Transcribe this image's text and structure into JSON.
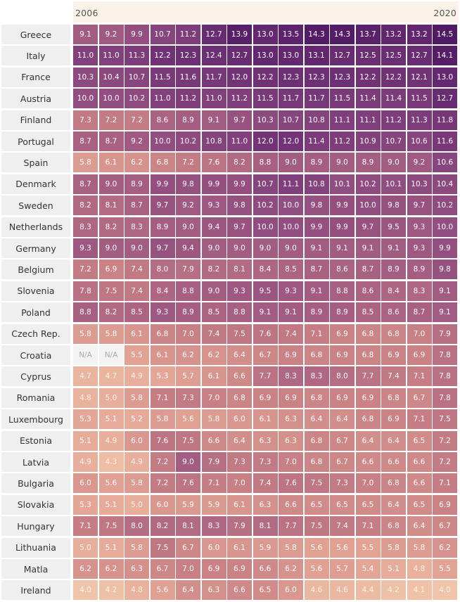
{
  "chart_data": {
    "type": "heatmap",
    "x_start_label": "2006",
    "x_end_label": "2020",
    "missing_label": "N/A",
    "rows": [
      {
        "country": "Greece",
        "values": [
          9.1,
          9.2,
          9.9,
          10.7,
          11.2,
          12.7,
          13.9,
          13.0,
          13.5,
          14.3,
          14.3,
          13.7,
          13.2,
          13.2,
          14.5
        ]
      },
      {
        "country": "Italy",
        "values": [
          11.0,
          11.0,
          11.3,
          12.2,
          12.3,
          12.4,
          12.7,
          13.0,
          13.0,
          13.1,
          12.7,
          12.5,
          12.5,
          12.7,
          14.1
        ]
      },
      {
        "country": "France",
        "values": [
          10.3,
          10.4,
          10.7,
          11.5,
          11.6,
          11.7,
          12.0,
          12.2,
          12.3,
          12.3,
          12.3,
          12.2,
          12.2,
          12.1,
          13.0
        ]
      },
      {
        "country": "Austria",
        "values": [
          10.0,
          10.0,
          10.2,
          11.0,
          11.2,
          11.0,
          11.2,
          11.5,
          11.7,
          11.7,
          11.5,
          11.4,
          11.4,
          11.5,
          12.7
        ]
      },
      {
        "country": "Finland",
        "values": [
          7.3,
          7.2,
          7.2,
          8.6,
          8.9,
          9.1,
          9.7,
          10.3,
          10.7,
          10.8,
          11.1,
          11.1,
          11.2,
          11.3,
          11.8
        ]
      },
      {
        "country": "Portugal",
        "values": [
          8.7,
          8.7,
          9.2,
          10.0,
          10.2,
          10.8,
          11.0,
          12.0,
          12.0,
          11.4,
          11.2,
          10.9,
          10.7,
          10.6,
          11.6
        ]
      },
      {
        "country": "Spain",
        "values": [
          5.8,
          6.1,
          6.2,
          6.8,
          7.2,
          7.6,
          8.2,
          8.8,
          9.0,
          8.9,
          9.0,
          8.9,
          9.0,
          9.2,
          10.6
        ]
      },
      {
        "country": "Denmark",
        "values": [
          8.7,
          9.0,
          8.9,
          9.9,
          9.8,
          9.9,
          9.9,
          10.7,
          11.1,
          10.8,
          10.1,
          10.2,
          10.1,
          10.3,
          10.4
        ]
      },
      {
        "country": "Sweden",
        "values": [
          8.2,
          8.1,
          8.7,
          9.7,
          9.2,
          9.3,
          9.8,
          10.2,
          10.0,
          9.8,
          9.9,
          10.0,
          9.8,
          9.7,
          10.2
        ]
      },
      {
        "country": "Netherlands",
        "values": [
          8.3,
          8.2,
          8.3,
          8.9,
          9.0,
          9.4,
          9.7,
          10.0,
          10.0,
          9.9,
          9.9,
          9.7,
          9.5,
          9.3,
          10.0
        ]
      },
      {
        "country": "Germany",
        "values": [
          9.3,
          9.0,
          9.0,
          9.7,
          9.4,
          9.0,
          9.0,
          9.0,
          9.0,
          9.1,
          9.1,
          9.1,
          9.1,
          9.3,
          9.9
        ]
      },
      {
        "country": "Belgium",
        "values": [
          7.2,
          6.9,
          7.4,
          8.0,
          7.9,
          8.2,
          8.1,
          8.4,
          8.5,
          8.7,
          8.6,
          8.7,
          8.9,
          8.9,
          9.8
        ]
      },
      {
        "country": "Slovenia",
        "values": [
          7.8,
          7.5,
          7.4,
          8.4,
          8.8,
          9.0,
          9.3,
          9.5,
          9.3,
          9.1,
          8.8,
          8.6,
          8.4,
          8.3,
          9.1
        ]
      },
      {
        "country": "Poland",
        "values": [
          8.8,
          8.2,
          8.5,
          9.3,
          8.9,
          8.5,
          8.8,
          9.1,
          9.1,
          8.9,
          8.9,
          8.5,
          8.6,
          8.7,
          9.1
        ]
      },
      {
        "country": "Czech Rep.",
        "values": [
          5.8,
          5.8,
          6.1,
          6.8,
          7.0,
          7.4,
          7.5,
          7.6,
          7.4,
          7.1,
          6.9,
          6.8,
          6.8,
          7.0,
          7.9
        ]
      },
      {
        "country": "Croatia",
        "values": [
          null,
          null,
          5.5,
          6.1,
          6.2,
          6.2,
          6.4,
          6.7,
          6.9,
          6.8,
          6.9,
          6.8,
          6.9,
          6.9,
          7.8
        ]
      },
      {
        "country": "Cyprus",
        "values": [
          4.7,
          4.7,
          4.9,
          5.3,
          5.7,
          6.1,
          6.6,
          7.7,
          8.3,
          8.3,
          8.0,
          7.7,
          7.4,
          7.1,
          7.8
        ]
      },
      {
        "country": "Romania",
        "values": [
          4.8,
          5.0,
          5.8,
          7.1,
          7.3,
          7.0,
          6.8,
          6.9,
          6.9,
          6.8,
          6.9,
          6.9,
          6.8,
          6.7,
          7.8
        ]
      },
      {
        "country": "Luxembourg",
        "values": [
          5.3,
          5.1,
          5.2,
          5.8,
          5.6,
          5.8,
          6.0,
          6.1,
          6.3,
          6.4,
          6.4,
          6.8,
          6.9,
          7.1,
          7.5
        ]
      },
      {
        "country": "Estonia",
        "values": [
          5.1,
          4.9,
          6.0,
          7.6,
          7.5,
          6.6,
          6.4,
          6.3,
          6.3,
          6.8,
          6.7,
          6.4,
          6.4,
          6.5,
          7.2
        ]
      },
      {
        "country": "Latvia",
        "values": [
          4.9,
          4.3,
          4.9,
          7.2,
          9.0,
          7.9,
          7.3,
          7.3,
          7.0,
          6.8,
          6.7,
          6.6,
          6.6,
          6.6,
          7.2
        ]
      },
      {
        "country": "Bulgaria",
        "values": [
          6.0,
          5.6,
          5.8,
          7.2,
          7.6,
          7.1,
          7.0,
          7.4,
          7.6,
          7.5,
          7.3,
          7.0,
          6.8,
          6.6,
          7.1
        ]
      },
      {
        "country": "Slovakia",
        "values": [
          5.3,
          5.1,
          5.0,
          6.0,
          5.9,
          5.9,
          6.1,
          6.3,
          6.6,
          6.5,
          6.5,
          6.5,
          6.4,
          6.5,
          6.9
        ]
      },
      {
        "country": "Hungary",
        "values": [
          7.1,
          7.5,
          8.0,
          8.2,
          8.1,
          8.3,
          7.9,
          8.1,
          7.7,
          7.5,
          7.4,
          7.1,
          6.8,
          6.4,
          6.7
        ]
      },
      {
        "country": "Lithuania",
        "values": [
          5.0,
          5.1,
          5.8,
          7.5,
          6.7,
          6.0,
          6.1,
          5.9,
          5.8,
          5.6,
          5.6,
          5.5,
          5.8,
          5.8,
          6.2
        ]
      },
      {
        "country": "Matla",
        "values": [
          6.2,
          6.2,
          6.3,
          6.7,
          7.0,
          6.9,
          6.9,
          6.6,
          6.2,
          5.6,
          5.7,
          5.4,
          5.1,
          4.8,
          5.5
        ]
      },
      {
        "country": "Ireland",
        "values": [
          4.0,
          4.2,
          4.8,
          5.6,
          6.4,
          6.3,
          6.6,
          6.5,
          6.0,
          4.6,
          4.6,
          4.4,
          4.2,
          4.1,
          4.0
        ]
      }
    ]
  }
}
